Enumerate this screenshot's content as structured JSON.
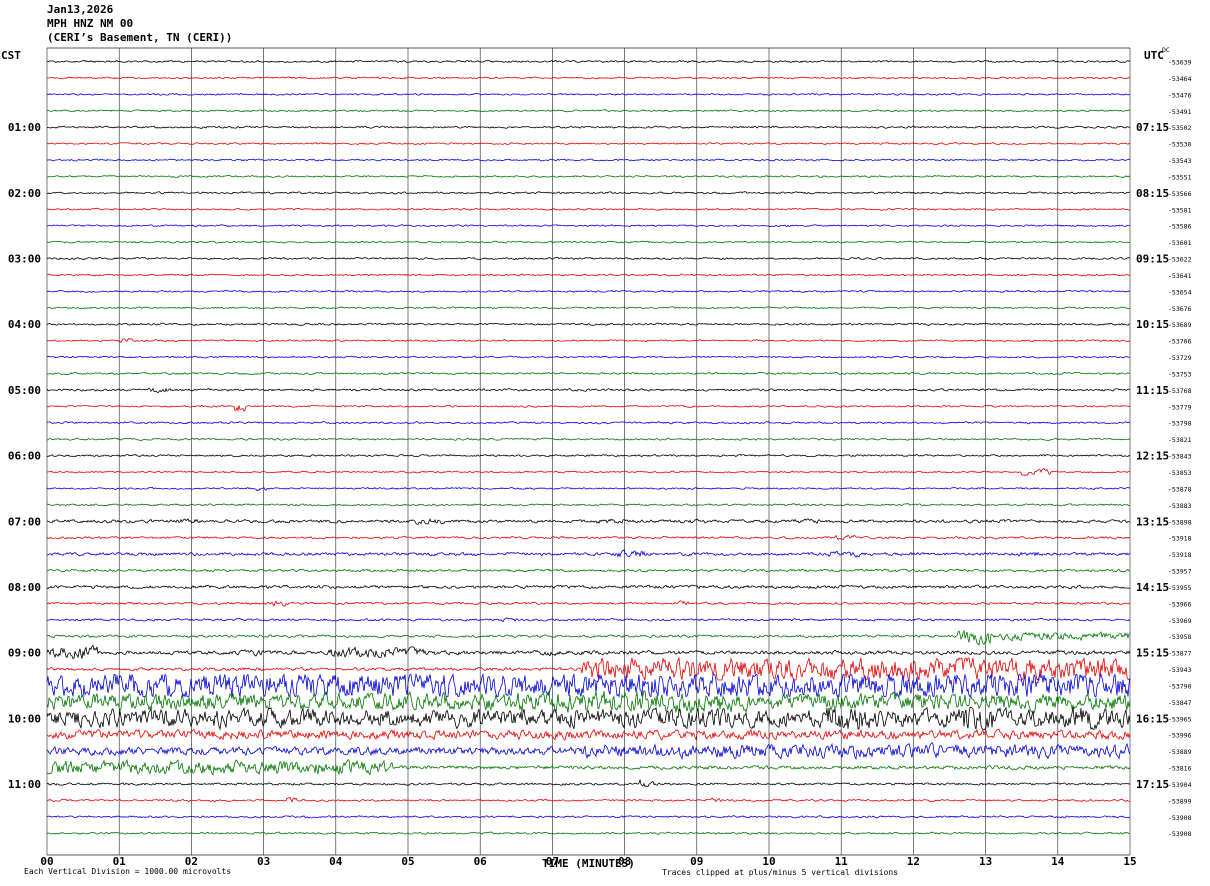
{
  "title": {
    "date": "Jan13,2026",
    "station": "MPH HNZ NM 00",
    "location": "(CERI’s Basement, TN (CERI))"
  },
  "axes": {
    "left_label": "CST",
    "right_label": "UTC",
    "dc_header": "DC",
    "x_axis_label": "TIME (MINUTES)",
    "x_ticks": [
      "00",
      "01",
      "02",
      "03",
      "04",
      "05",
      "06",
      "07",
      "08",
      "09",
      "10",
      "11",
      "12",
      "13",
      "14",
      "15"
    ]
  },
  "footnotes": {
    "left": "Each Vertical Division = 1000.00 microvolts",
    "right": "Traces clipped at plus/minus 5 vertical divisions"
  },
  "colors": {
    "black": "#000000",
    "red": "#e60000",
    "blue": "#0000e0",
    "green": "#007700",
    "grid": "#222222"
  },
  "chart_data": {
    "type": "line",
    "subtype": "seismogram-helicorder",
    "minutes_per_line": 15,
    "x_range_minutes": [
      0,
      15
    ],
    "clip_divisions": 5,
    "microvolts_per_division": "1000.00",
    "rows": [
      {
        "c": "black",
        "dc": "-53639",
        "base": 0.7
      },
      {
        "c": "red",
        "dc": "-53464",
        "base": 0.6
      },
      {
        "c": "blue",
        "dc": "-53476",
        "base": 0.6
      },
      {
        "c": "green",
        "dc": "-53491",
        "base": 0.6
      },
      {
        "c": "black",
        "dc": "-53502",
        "cst": "01:00",
        "utc": "07:15",
        "base": 0.7
      },
      {
        "c": "red",
        "dc": "-53530",
        "base": 0.6
      },
      {
        "c": "blue",
        "dc": "-53543",
        "base": 0.6
      },
      {
        "c": "green",
        "dc": "-53551",
        "base": 0.6
      },
      {
        "c": "black",
        "dc": "-53566",
        "cst": "02:00",
        "utc": "08:15",
        "base": 0.7
      },
      {
        "c": "red",
        "dc": "-53581",
        "base": 0.6
      },
      {
        "c": "blue",
        "dc": "-53586",
        "base": 0.6
      },
      {
        "c": "green",
        "dc": "-53601",
        "base": 0.6
      },
      {
        "c": "black",
        "dc": "-53622",
        "cst": "03:00",
        "utc": "09:15",
        "base": 0.7
      },
      {
        "c": "red",
        "dc": "-53641",
        "base": 0.6
      },
      {
        "c": "blue",
        "dc": "-53654",
        "base": 0.6
      },
      {
        "c": "green",
        "dc": "-53676",
        "base": 0.6
      },
      {
        "c": "black",
        "dc": "-53689",
        "cst": "04:00",
        "utc": "10:15",
        "base": 0.7
      },
      {
        "c": "red",
        "dc": "-53706",
        "base": 0.6,
        "bursts": [
          [
            1.0,
            1.2,
            1.5
          ]
        ]
      },
      {
        "c": "blue",
        "dc": "-53729",
        "base": 0.6
      },
      {
        "c": "green",
        "dc": "-53753",
        "base": 0.7
      },
      {
        "c": "black",
        "dc": "-53768",
        "cst": "05:00",
        "utc": "11:15",
        "base": 0.8,
        "bursts": [
          [
            1.4,
            1.7,
            1.8
          ]
        ]
      },
      {
        "c": "red",
        "dc": "-53779",
        "base": 0.6,
        "bursts": [
          [
            2.6,
            2.75,
            3.5
          ]
        ]
      },
      {
        "c": "blue",
        "dc": "-53798",
        "base": 0.7
      },
      {
        "c": "green",
        "dc": "-53821",
        "base": 0.7
      },
      {
        "c": "black",
        "dc": "-53843",
        "cst": "06:00",
        "utc": "12:15",
        "base": 0.7
      },
      {
        "c": "red",
        "dc": "-53853",
        "base": 0.6,
        "bursts": [
          [
            13.5,
            13.9,
            2.2
          ]
        ]
      },
      {
        "c": "blue",
        "dc": "-53878",
        "base": 0.6,
        "bursts": [
          [
            2.9,
            3.05,
            1.8
          ]
        ]
      },
      {
        "c": "green",
        "dc": "-53883",
        "base": 0.7
      },
      {
        "c": "black",
        "dc": "-53898",
        "cst": "07:00",
        "utc": "13:15",
        "base": 1.1,
        "bursts": [
          [
            1.7,
            2.1,
            1.8
          ],
          [
            5.1,
            5.5,
            1.9
          ],
          [
            7.6,
            8.0,
            1.8
          ],
          [
            8.8,
            9.2,
            1.6
          ],
          [
            10.3,
            10.7,
            1.6
          ]
        ]
      },
      {
        "c": "red",
        "dc": "-53918",
        "base": 0.8,
        "bursts": [
          [
            10.9,
            11.2,
            1.8
          ]
        ]
      },
      {
        "c": "blue",
        "dc": "-53918",
        "base": 1.1,
        "bursts": [
          [
            7.9,
            8.3,
            2.6
          ],
          [
            10.8,
            11.3,
            2.2
          ],
          [
            13.4,
            13.8,
            1.8
          ]
        ]
      },
      {
        "c": "green",
        "dc": "-53957",
        "base": 0.9
      },
      {
        "c": "black",
        "dc": "-53955",
        "cst": "08:00",
        "utc": "14:15",
        "base": 1.1
      },
      {
        "c": "red",
        "dc": "-53966",
        "base": 0.8,
        "bursts": [
          [
            3.1,
            3.3,
            2.2
          ],
          [
            8.7,
            8.9,
            1.6
          ]
        ]
      },
      {
        "c": "blue",
        "dc": "-53969",
        "base": 0.8,
        "bursts": [
          [
            6.3,
            6.5,
            1.6
          ]
        ]
      },
      {
        "c": "green",
        "dc": "-53958",
        "base": 0.9,
        "bursts": [
          [
            12.6,
            13.1,
            5.5
          ],
          [
            13.1,
            15,
            2.8
          ]
        ]
      },
      {
        "c": "black",
        "dc": "-53877",
        "cst": "09:00",
        "utc": "15:15",
        "base": 1.4,
        "bursts": [
          [
            0,
            0.7,
            4.5
          ],
          [
            2.6,
            3.0,
            2.0
          ],
          [
            3.9,
            5.4,
            3.5
          ],
          [
            6.8,
            7.1,
            2.0
          ]
        ]
      },
      {
        "c": "red",
        "dc": "-53943",
        "base": 1.1,
        "bursts": [
          [
            7.4,
            15,
            8
          ]
        ]
      },
      {
        "c": "blue",
        "dc": "-53790",
        "base": 1.2,
        "bursts": [
          [
            0,
            15,
            9
          ]
        ]
      },
      {
        "c": "green",
        "dc": "-53847",
        "base": 1.2,
        "bursts": [
          [
            0,
            15,
            6
          ],
          [
            6.5,
            9.5,
            8
          ]
        ]
      },
      {
        "c": "black",
        "dc": "-53965",
        "cst": "10:00",
        "utc": "16:15",
        "base": 1.2,
        "bursts": [
          [
            0,
            15,
            6.5
          ],
          [
            10.8,
            11.4,
            11
          ],
          [
            12.6,
            13.1,
            11
          ],
          [
            14.2,
            14.6,
            9
          ]
        ]
      },
      {
        "c": "red",
        "dc": "-53996",
        "base": 1.0,
        "bursts": [
          [
            0,
            15,
            3.2
          ]
        ]
      },
      {
        "c": "blue",
        "dc": "-53889",
        "base": 1.0,
        "bursts": [
          [
            0,
            7.4,
            2.8
          ],
          [
            7.4,
            15,
            4.8
          ]
        ]
      },
      {
        "c": "green",
        "dc": "-53816",
        "base": 1.0,
        "bursts": [
          [
            0,
            4.8,
            4.8
          ],
          [
            4.8,
            15,
            1.3
          ]
        ]
      },
      {
        "c": "black",
        "dc": "-53904",
        "cst": "11:00",
        "utc": "17:15",
        "base": 0.8,
        "bursts": [
          [
            8.2,
            8.45,
            2.6
          ]
        ]
      },
      {
        "c": "red",
        "dc": "-53899",
        "base": 0.7,
        "bursts": [
          [
            3.3,
            3.45,
            1.8
          ],
          [
            9.2,
            9.35,
            1.6
          ]
        ]
      },
      {
        "c": "blue",
        "dc": "-53908",
        "base": 0.7
      },
      {
        "c": "green",
        "dc": "-53908",
        "base": 0.7
      }
    ]
  }
}
